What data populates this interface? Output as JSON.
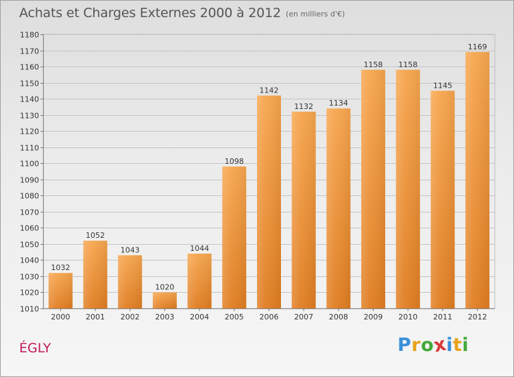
{
  "header": {
    "title": "Achats et Charges Externes 2000 à 2012",
    "subtitle": "(en milliers d'€)"
  },
  "footer": {
    "commune": "ÉGLY",
    "logo": {
      "letters": [
        "P",
        "r",
        "o",
        "x",
        "i",
        "t",
        "i"
      ],
      "colors": [
        "#3a8fd9",
        "#e8a21b",
        "#43a83a",
        "#d93a3a",
        "#3a8fd9",
        "#e8a21b",
        "#43a83a"
      ]
    }
  },
  "chart_data": {
    "type": "bar",
    "categories": [
      "2000",
      "2001",
      "2002",
      "2003",
      "2004",
      "2005",
      "2006",
      "2007",
      "2008",
      "2009",
      "2010",
      "2011",
      "2012"
    ],
    "values": [
      1032,
      1052,
      1043,
      1020,
      1044,
      1098,
      1142,
      1132,
      1134,
      1158,
      1158,
      1145,
      1169
    ],
    "ylim": [
      1010,
      1180
    ],
    "yticks": [
      1010,
      1020,
      1030,
      1040,
      1050,
      1060,
      1070,
      1080,
      1090,
      1100,
      1110,
      1120,
      1130,
      1140,
      1150,
      1160,
      1170,
      1180
    ],
    "grid": true,
    "bar_color": "#f0923a"
  }
}
